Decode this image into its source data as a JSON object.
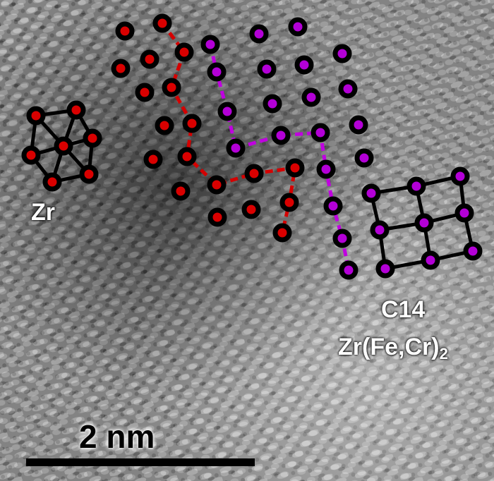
{
  "figure": {
    "phase_labels": {
      "matrix": "Zr",
      "precipitate_name": "C14",
      "precipitate_formula_main": "Zr(Fe,Cr)",
      "precipitate_formula_subscript": "2"
    },
    "scale_bar": {
      "label": "2 nm"
    },
    "colors": {
      "zr_atom": "#d90000",
      "c14_atom": "#b300d6",
      "atom_outline": "#000000",
      "zr_bond": "#d40000",
      "c14_bond": "#c000e0",
      "label_text": "#ffffff",
      "scale_bar": "#000000"
    }
  }
}
